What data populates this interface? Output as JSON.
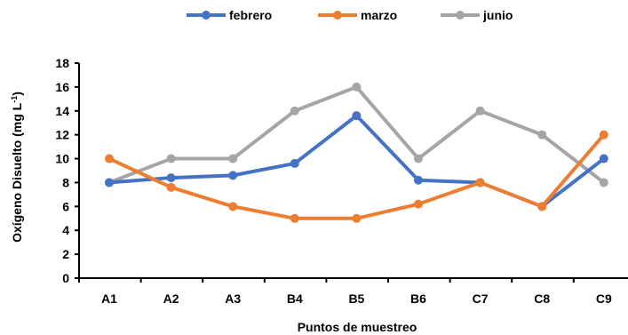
{
  "chart_data": {
    "type": "line",
    "categories": [
      "A1",
      "A2",
      "A3",
      "B4",
      "B5",
      "B6",
      "C7",
      "C8",
      "C9"
    ],
    "series": [
      {
        "name": "febrero",
        "color": "#4472c4",
        "values": [
          8,
          8.4,
          8.6,
          9.6,
          13.6,
          8.2,
          8,
          6,
          10
        ]
      },
      {
        "name": "marzo",
        "color": "#ed7d31",
        "values": [
          10,
          7.6,
          6,
          5,
          5,
          6.2,
          8,
          6,
          12
        ]
      },
      {
        "name": "junio",
        "color": "#a5a5a5",
        "values": [
          8,
          10,
          10,
          14,
          16,
          10,
          14,
          12,
          8
        ]
      }
    ],
    "xlabel": "Puntos de muestreo",
    "ylabel": "Oxígeno Disuelto (mg L",
    "ylabel_sup": "-1",
    "ylabel_close": ")",
    "ylim": [
      0,
      18
    ],
    "yticks": [
      "0",
      "2",
      "4",
      "6",
      "8",
      "10",
      "12",
      "14",
      "16",
      "18"
    ],
    "grid": false,
    "legend_position": "top"
  }
}
